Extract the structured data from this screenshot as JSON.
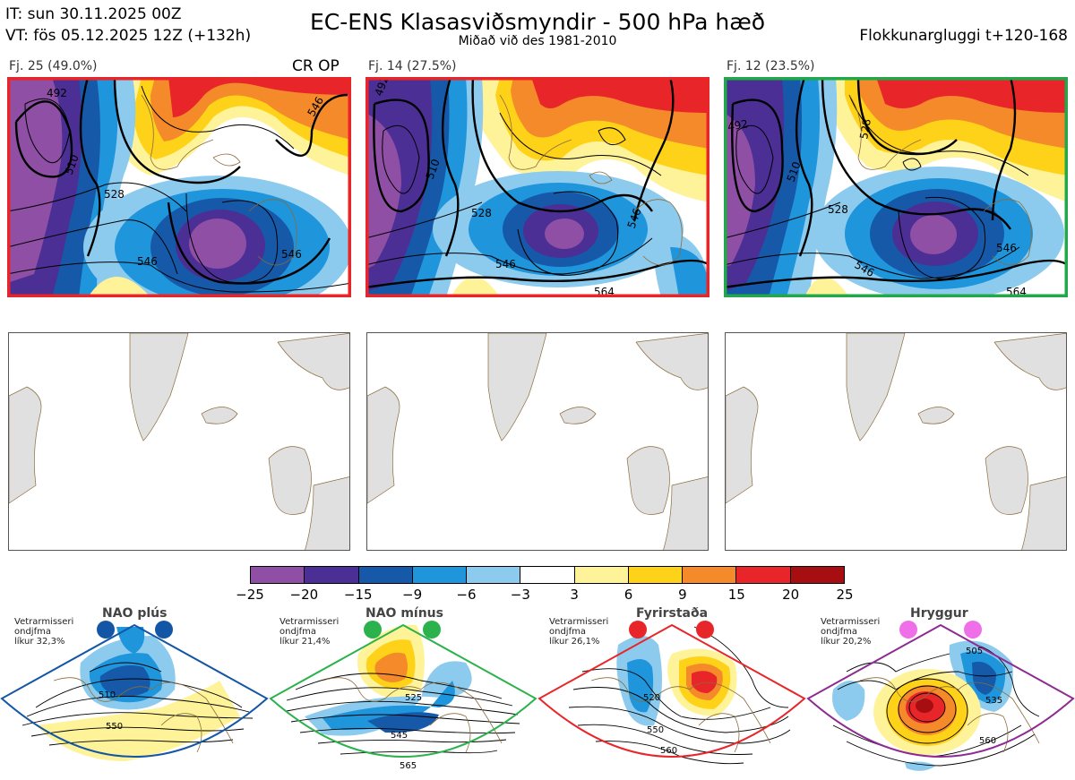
{
  "header": {
    "it_line": "IT: sun 30.11.2025 00Z",
    "vt_line": "VT: fös 05.12.2025 12Z  (+132h)",
    "title": "EC-ENS Klasasviðsmyndir - 500 hPa hæð",
    "subtitle": "Miðað við des 1981-2010",
    "window": "Flokkunargluggi t+120-168"
  },
  "panels": [
    {
      "label": "Fj. 25 (49.0%)",
      "tag": "CR OP",
      "border_color": "#e8262a",
      "contours": [
        "492",
        "510",
        "528",
        "546",
        "546",
        "546"
      ]
    },
    {
      "label": "Fj. 14 (27.5%)",
      "tag": "",
      "border_color": "#e8262a",
      "contours": [
        "492",
        "510",
        "528",
        "546",
        "546",
        "564"
      ]
    },
    {
      "label": "Fj. 12 (23.5%)",
      "tag": "",
      "border_color": "#22a84a",
      "contours": [
        "492",
        "528",
        "510",
        "528",
        "546",
        "546",
        "564"
      ]
    }
  ],
  "colorbar": {
    "colors": [
      "#8e4fa5",
      "#4b2f95",
      "#1659a8",
      "#1f95dc",
      "#8ccbee",
      "#ffffff",
      "#fff39a",
      "#ffd21a",
      "#f58a2a",
      "#e8262a",
      "#a60e12"
    ],
    "ticks": [
      "−25",
      "−20",
      "−15",
      "−9",
      "−6",
      "−3",
      "3",
      "6",
      "9",
      "15",
      "20",
      "25"
    ]
  },
  "regimes": [
    {
      "name": "NAO plús",
      "info_1": "Vetrarmisseri",
      "info_2": "ondjfma",
      "info_3": "líkur 32,3%",
      "color": "#1456a6",
      "contours": [
        "510",
        "550"
      ]
    },
    {
      "name": "NAO mínus",
      "info_1": "Vetrarmisseri",
      "info_2": "ondjfma",
      "info_3": "líkur 21,4%",
      "color": "#2bb24c",
      "contours": [
        "525",
        "545",
        "565"
      ]
    },
    {
      "name": "Fyrirstaða",
      "info_1": "Vetrarmisseri",
      "info_2": "ondjfma",
      "info_3": "líkur 26,1%",
      "color": "#e8262a",
      "contours": [
        "520",
        "550",
        "560"
      ]
    },
    {
      "name": "Hryggur",
      "info_1": "Vetrarmisseri",
      "info_2": "ondjfma",
      "info_3": "líkur 20,2%",
      "color": "#ee6fe8",
      "contours": [
        "505",
        "535",
        "560"
      ]
    }
  ]
}
